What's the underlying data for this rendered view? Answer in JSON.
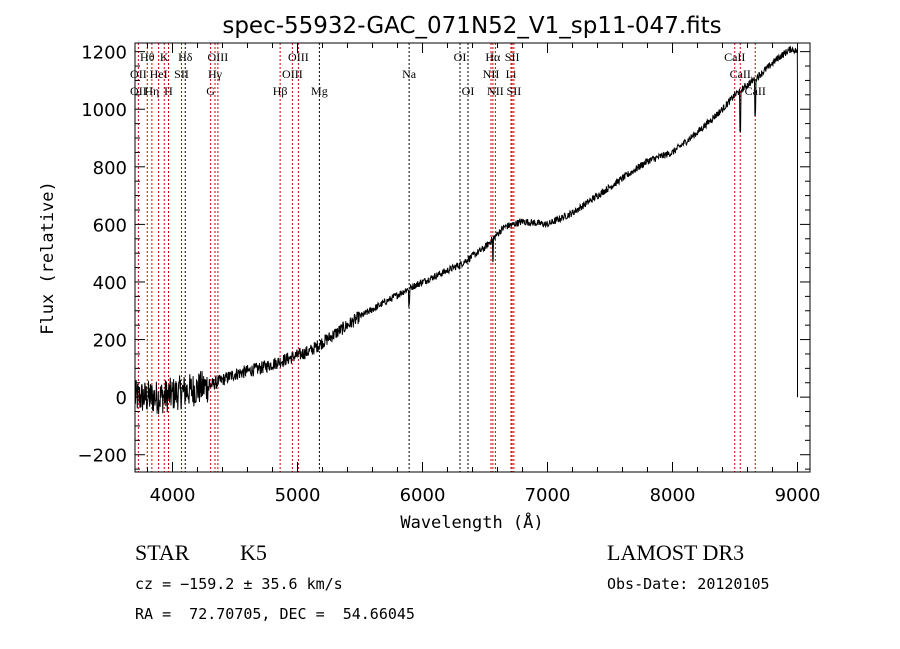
{
  "chart_data": {
    "type": "line",
    "title": "spec-55932-GAC_071N52_V1_sp11-047.fits",
    "xlabel": "Wavelength (Å)",
    "ylabel": "Flux (relative)",
    "xlim": [
      3700,
      9100
    ],
    "ylim": [
      -260,
      1230
    ],
    "xticks": [
      4000,
      5000,
      6000,
      7000,
      8000,
      9000
    ],
    "yticks": [
      -200,
      0,
      200,
      400,
      600,
      800,
      1000,
      1200
    ],
    "grid": false,
    "series": [
      {
        "name": "spectrum",
        "approximate_flux": {
          "x": [
            3700,
            3900,
            4100,
            4300,
            4500,
            4700,
            4900,
            5100,
            5300,
            5500,
            5700,
            5900,
            6100,
            6300,
            6500,
            6650,
            6800,
            7000,
            7200,
            7500,
            7800,
            8000,
            8200,
            8400,
            8500,
            8700,
            8850,
            8950,
            9000
          ],
          "y": [
            0,
            0,
            20,
            40,
            80,
            100,
            130,
            160,
            220,
            280,
            330,
            380,
            420,
            460,
            520,
            590,
            610,
            600,
            640,
            730,
            820,
            850,
            920,
            1000,
            1050,
            1120,
            1180,
            1210,
            1200
          ]
        }
      }
    ],
    "lines": [
      {
        "label": "OII",
        "w": 3727,
        "row": 2,
        "color": "#cc0000"
      },
      {
        "label": "OII",
        "w": 3727,
        "row": 3,
        "color": "#cc0000"
      },
      {
        "label": "Hθ",
        "w": 3798,
        "row": 1,
        "color": "#cc0000"
      },
      {
        "label": "Hη",
        "w": 3835,
        "row": 3,
        "color": "#cc0000"
      },
      {
        "label": "HeI",
        "w": 3889,
        "row": 2,
        "color": "#cc0000"
      },
      {
        "label": "K",
        "w": 3934,
        "row": 1,
        "color": "#cc0000"
      },
      {
        "label": "H",
        "w": 3968,
        "row": 3,
        "color": "#cc0000"
      },
      {
        "label": "SII",
        "w": 4072,
        "row": 2,
        "color": "#cc0000"
      },
      {
        "label": "Hδ",
        "w": 4102,
        "row": 1,
        "color": "#000000"
      },
      {
        "label": "G",
        "w": 4305,
        "row": 3,
        "color": "#cc0000"
      },
      {
        "label": "Hγ",
        "w": 4340,
        "row": 2,
        "color": "#cc0000"
      },
      {
        "label": "OIII",
        "w": 4363,
        "row": 1,
        "color": "#cc0000"
      },
      {
        "label": "Hβ",
        "w": 4861,
        "row": 3,
        "color": "#cc0000"
      },
      {
        "label": "OIII",
        "w": 4959,
        "row": 2,
        "color": "#cc0000"
      },
      {
        "label": "OIII",
        "w": 5007,
        "row": 1,
        "color": "#cc0000"
      },
      {
        "label": "Mg",
        "w": 5175,
        "row": 3,
        "color": "#000000"
      },
      {
        "label": "Na",
        "w": 5893,
        "row": 2,
        "color": "#000000"
      },
      {
        "label": "OI",
        "w": 6300,
        "row": 1,
        "color": "#000000"
      },
      {
        "label": "OI",
        "w": 6364,
        "row": 3,
        "color": "#000000"
      },
      {
        "label": "NII",
        "w": 6548,
        "row": 2,
        "color": "#cc0000"
      },
      {
        "label": "Hα",
        "w": 6563,
        "row": 1,
        "color": "#cc0000"
      },
      {
        "label": "NII",
        "w": 6583,
        "row": 3,
        "color": "#cc0000"
      },
      {
        "label": "Li",
        "w": 6708,
        "row": 2,
        "color": "#cc0000"
      },
      {
        "label": "SII",
        "w": 6717,
        "row": 1,
        "color": "#cc0000"
      },
      {
        "label": "SII",
        "w": 6731,
        "row": 3,
        "color": "#cc0000"
      },
      {
        "label": "CaII",
        "w": 8498,
        "row": 1,
        "color": "#cc0000"
      },
      {
        "label": "CaII",
        "w": 8542,
        "row": 2,
        "color": "#cc0000"
      },
      {
        "label": "CaII",
        "w": 8662,
        "row": 3,
        "color": "#cc0000"
      }
    ]
  },
  "info": {
    "class_label": "STAR",
    "subclass": "K5",
    "survey": "LAMOST DR3",
    "redshift": "cz = −159.2 ± 35.6 km/s",
    "obs_date": "Obs-Date: 20120105",
    "coords": "RA =  72.70705, DEC =  54.66045"
  }
}
